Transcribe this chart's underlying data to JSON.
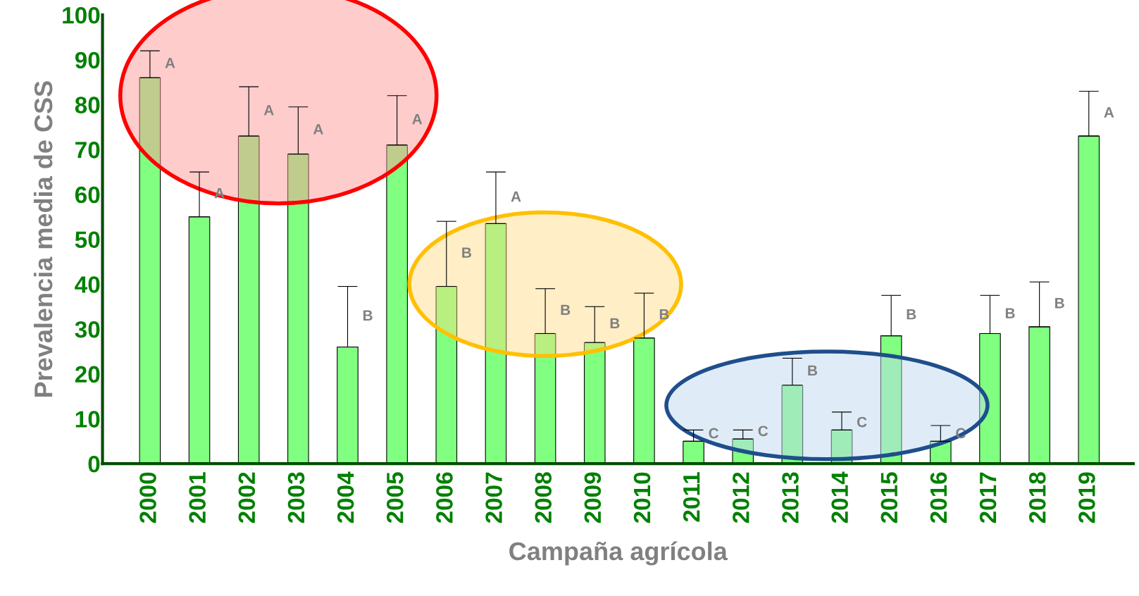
{
  "chart_data": {
    "type": "bar",
    "xlabel": "Campaña agrícola",
    "ylabel": "Prevalencia media de CSS",
    "categories": [
      "2000",
      "2001",
      "2002",
      "2003",
      "2004",
      "2005",
      "2006",
      "2007",
      "2008",
      "2009",
      "2010",
      "2011",
      "2012",
      "2013",
      "2014",
      "2015",
      "2016",
      "2017",
      "2018",
      "2019"
    ],
    "values": [
      86,
      55,
      73,
      69,
      26,
      71,
      39.5,
      53.5,
      29,
      27,
      28,
      5,
      5.5,
      17.5,
      7.5,
      28.5,
      5,
      29,
      30.5,
      73
    ],
    "errors": [
      [
        86,
        92
      ],
      [
        55,
        65
      ],
      [
        73,
        84
      ],
      [
        69,
        79.5
      ],
      [
        26,
        39.5
      ],
      [
        71,
        82
      ],
      [
        39.5,
        54
      ],
      [
        53.5,
        65
      ],
      [
        29,
        39
      ],
      [
        27,
        35
      ],
      [
        28,
        38
      ],
      [
        5,
        7.5
      ],
      [
        5.5,
        7.5
      ],
      [
        17.5,
        23.5
      ],
      [
        7.5,
        11.5
      ],
      [
        28.5,
        37.5
      ],
      [
        5,
        8.5
      ],
      [
        29,
        37.5
      ],
      [
        30.5,
        40.5
      ],
      [
        73,
        83
      ]
    ],
    "value_labels": [
      "A",
      "A",
      "A",
      "A",
      "B",
      "A",
      "B",
      "A",
      "B",
      "B",
      "B",
      "C",
      "C",
      "B",
      "C",
      "B",
      "C",
      "B",
      "B",
      "A"
    ],
    "color": "#80ff80",
    "ylim": [
      0,
      100
    ],
    "yticks": [
      0,
      10,
      20,
      30,
      40,
      50,
      60,
      70,
      80,
      90,
      100
    ],
    "grid": false,
    "legend": false
  }
}
